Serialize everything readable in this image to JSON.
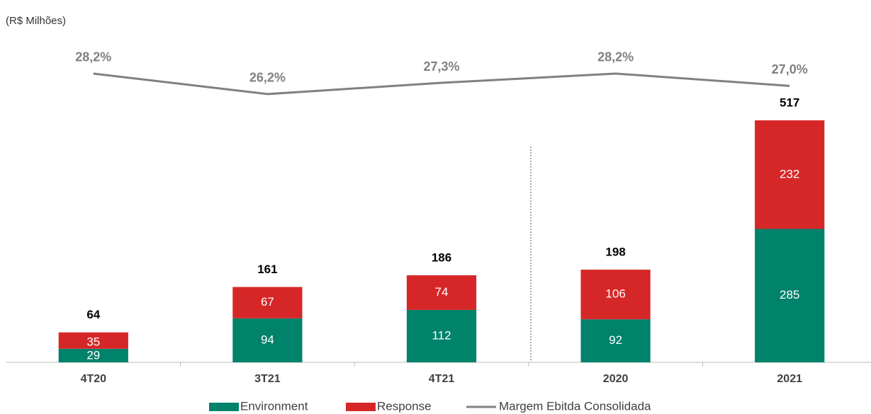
{
  "chart_data": {
    "type": "bar",
    "stacked": true,
    "subtitle": "(R$ Milhões)",
    "categories": [
      "4T20",
      "3T21",
      "4T21",
      "2020",
      "2021"
    ],
    "series": [
      {
        "name": "Environment",
        "color": "#00826b",
        "values": [
          29,
          94,
          112,
          92,
          285
        ]
      },
      {
        "name": "Response",
        "color": "#d62728",
        "values": [
          35,
          67,
          74,
          106,
          232
        ]
      },
      {
        "name": "Margem Ebitda Consolidada",
        "type": "line",
        "axis": "y2",
        "color": "#808080",
        "values": [
          28.2,
          26.2,
          27.3,
          28.2,
          27.0
        ],
        "value_labels": [
          "28,2%",
          "26,2%",
          "27,3%",
          "28,2%",
          "27,0%"
        ]
      }
    ],
    "totals": [
      64,
      161,
      186,
      198,
      517
    ],
    "ylim": [
      0,
      700
    ],
    "y2lim": [
      0,
      32
    ],
    "legend": "bottom"
  }
}
